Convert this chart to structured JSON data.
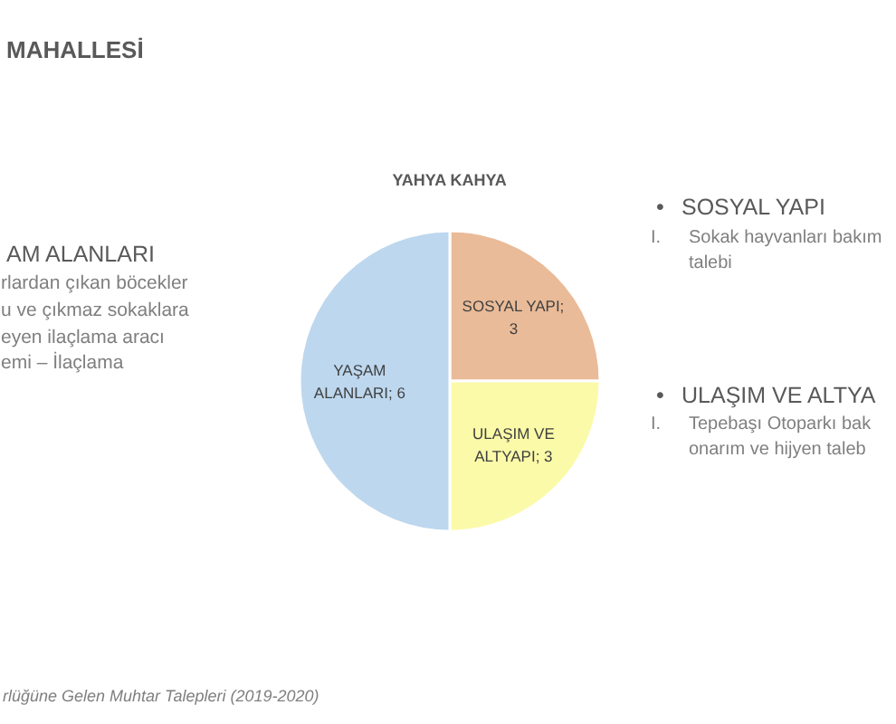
{
  "chart_data": {
    "type": "pie",
    "title": "YAHYA KAHYA",
    "categories": [
      "SOSYAL YAPI",
      "ULAŞIM VE ALTYAPI",
      "YAŞAM ALANLARI"
    ],
    "values": [
      3,
      3,
      6
    ],
    "colors": [
      "#eabb98",
      "#fbfaa8",
      "#bdd7ee"
    ],
    "value_labels": [
      "; 3",
      "; 3",
      "; 6"
    ],
    "annotations": [
      "MAHALLESİ",
      "AM ALANLARI",
      "rlardan çıkan böcekler",
      "u ve çıkmaz sokaklara",
      "eyen ilaçlama aracı",
      "emi – İlaçlama",
      "•",
      "SOSYAL YAPI",
      "I.",
      "Sokak hayvanları bakım",
      "talebi",
      "•",
      "ULAŞIM VE ALTYA",
      "I.",
      "Tepebaşı Otoparkı bak",
      "onarım ve hijyen taleb",
      "rlüğüne Gelen Muhtar Talepleri (2019-2020)"
    ]
  }
}
